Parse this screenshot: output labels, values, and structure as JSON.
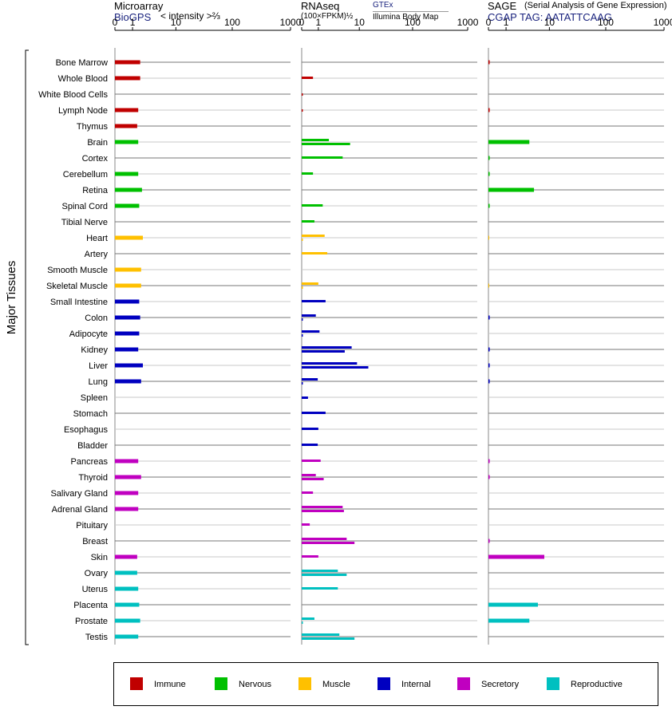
{
  "headers": {
    "microarray": {
      "title": "Microarray",
      "source": "BioGPS",
      "unit": "< intensity >⅔"
    },
    "rnaseq": {
      "title": "RNAseq",
      "unit": "(100×FPKM)½",
      "source_top": "GTEx",
      "source_bottom": "Illumina Body Map"
    },
    "sage": {
      "title": "SAGE",
      "subtitle": "(Serial Analysis of Gene Expression)",
      "tag": "CGAP  TAG: AATATTCAAG"
    }
  },
  "y_group_label": "Major Tissues",
  "colors": {
    "Immune": "#c00000",
    "Nervous": "#00c000",
    "Muscle": "#ffc000",
    "Internal": "#0000c0",
    "Secretory": "#c000c0",
    "Reproductive": "#00c0c0"
  },
  "legend": [
    {
      "label": "Immune",
      "category": "Immune"
    },
    {
      "label": "Nervous",
      "category": "Nervous"
    },
    {
      "label": "Muscle",
      "category": "Muscle"
    },
    {
      "label": "Internal",
      "category": "Internal"
    },
    {
      "label": "Secretory",
      "category": "Secretory"
    },
    {
      "label": "Reproductive",
      "category": "Reproductive"
    }
  ],
  "chart_data": {
    "type": "bar",
    "axis_ticks": [
      "0",
      "1",
      "10",
      "100",
      "1000"
    ],
    "axis_tick_values": [
      0,
      1,
      10,
      100,
      1000
    ],
    "scale": "symlog",
    "grid": true,
    "legend_placement": "bottom",
    "panels": [
      {
        "name": "Microarray",
        "series": [
          "BioGPS"
        ]
      },
      {
        "name": "RNAseq",
        "series": [
          "GTEx",
          "Illumina Body Map"
        ]
      },
      {
        "name": "SAGE",
        "series": [
          "CGAP"
        ]
      }
    ],
    "tissues": [
      {
        "name": "Bone Marrow",
        "category": "Immune",
        "microarray": 1.7,
        "gtex": null,
        "ibm": null,
        "sage": 0.05
      },
      {
        "name": "Whole Blood",
        "category": "Immune",
        "microarray": 1.7,
        "gtex": 0.6,
        "ibm": null,
        "sage": null
      },
      {
        "name": "White Blood Cells",
        "category": "Immune",
        "microarray": null,
        "gtex": null,
        "ibm": 0.05,
        "sage": null
      },
      {
        "name": "Lymph Node",
        "category": "Immune",
        "microarray": 1.5,
        "gtex": null,
        "ibm": 0.05,
        "sage": 0.05
      },
      {
        "name": "Thymus",
        "category": "Immune",
        "microarray": 1.4,
        "gtex": null,
        "ibm": null,
        "sage": null
      },
      {
        "name": "Brain",
        "category": "Nervous",
        "microarray": 1.5,
        "gtex": 2.1,
        "ibm": 6.5,
        "sage": 4.0
      },
      {
        "name": "Cortex",
        "category": "Nervous",
        "microarray": null,
        "gtex": 4.5,
        "ibm": null,
        "sage": 0.05
      },
      {
        "name": "Cerebellum",
        "category": "Nervous",
        "microarray": 1.5,
        "gtex": 0.6,
        "ibm": null,
        "sage": 0.05
      },
      {
        "name": "Retina",
        "category": "Nervous",
        "microarray": 1.9,
        "gtex": null,
        "ibm": null,
        "sage": 5.0
      },
      {
        "name": "Spinal Cord",
        "category": "Nervous",
        "microarray": 1.6,
        "gtex": 1.4,
        "ibm": null,
        "sage": 0.05
      },
      {
        "name": "Tibial Nerve",
        "category": "Nervous",
        "microarray": null,
        "gtex": 0.7,
        "ibm": null,
        "sage": null
      },
      {
        "name": "Heart",
        "category": "Muscle",
        "microarray": 2.0,
        "gtex": 1.6,
        "ibm": 0.05,
        "sage": 0.02
      },
      {
        "name": "Artery",
        "category": "Muscle",
        "microarray": null,
        "gtex": 1.9,
        "ibm": null,
        "sage": null
      },
      {
        "name": "Smooth Muscle",
        "category": "Muscle",
        "microarray": 1.8,
        "gtex": null,
        "ibm": null,
        "sage": null
      },
      {
        "name": "Skeletal Muscle",
        "category": "Muscle",
        "microarray": 1.8,
        "gtex": 1.0,
        "ibm": 0.05,
        "sage": 0.02
      },
      {
        "name": "Small Intestine",
        "category": "Internal",
        "microarray": 1.6,
        "gtex": 1.7,
        "ibm": null,
        "sage": null
      },
      {
        "name": "Colon",
        "category": "Internal",
        "microarray": 1.7,
        "gtex": 0.8,
        "ibm": 0.05,
        "sage": 0.05
      },
      {
        "name": "Adipocyte",
        "category": "Internal",
        "microarray": 1.6,
        "gtex": 1.1,
        "ibm": 0.05,
        "sage": null
      },
      {
        "name": "Kidney",
        "category": "Internal",
        "microarray": 1.5,
        "gtex": 7.0,
        "ibm": 5.0,
        "sage": 0.05
      },
      {
        "name": "Liver",
        "category": "Internal",
        "microarray": 2.0,
        "gtex": 9.0,
        "ibm": 15.0,
        "sage": 0.05
      },
      {
        "name": "Lung",
        "category": "Internal",
        "microarray": 1.8,
        "gtex": 0.95,
        "ibm": 0.05,
        "sage": 0.05
      },
      {
        "name": "Spleen",
        "category": "Internal",
        "microarray": null,
        "gtex": null,
        "ibm": 0.3,
        "sage": null
      },
      {
        "name": "Stomach",
        "category": "Internal",
        "microarray": null,
        "gtex": 1.7,
        "ibm": null,
        "sage": null
      },
      {
        "name": "Esophagus",
        "category": "Internal",
        "microarray": null,
        "gtex": 1.0,
        "ibm": null,
        "sage": null
      },
      {
        "name": "Bladder",
        "category": "Internal",
        "microarray": null,
        "gtex": 0.95,
        "ibm": null,
        "sage": null
      },
      {
        "name": "Pancreas",
        "category": "Secretory",
        "microarray": 1.5,
        "gtex": 1.2,
        "ibm": null,
        "sage": 0.05
      },
      {
        "name": "Thyroid",
        "category": "Secretory",
        "microarray": 1.8,
        "gtex": 0.8,
        "ibm": 1.5,
        "sage": 0.05
      },
      {
        "name": "Salivary Gland",
        "category": "Secretory",
        "microarray": 1.5,
        "gtex": 0.6,
        "ibm": null,
        "sage": null
      },
      {
        "name": "Adrenal Gland",
        "category": "Secretory",
        "microarray": 1.5,
        "gtex": 4.5,
        "ibm": 4.8,
        "sage": null
      },
      {
        "name": "Pituitary",
        "category": "Secretory",
        "microarray": null,
        "gtex": 0.4,
        "ibm": null,
        "sage": null
      },
      {
        "name": "Breast",
        "category": "Secretory",
        "microarray": null,
        "gtex": 5.5,
        "ibm": 8.0,
        "sage": 0.05
      },
      {
        "name": "Skin",
        "category": "Secretory",
        "microarray": 1.4,
        "gtex": 1.0,
        "ibm": null,
        "sage": 8.0
      },
      {
        "name": "Ovary",
        "category": "Reproductive",
        "microarray": 1.4,
        "gtex": 3.5,
        "ibm": 5.5,
        "sage": null
      },
      {
        "name": "Uterus",
        "category": "Reproductive",
        "microarray": 1.5,
        "gtex": 3.5,
        "ibm": null,
        "sage": null
      },
      {
        "name": "Placenta",
        "category": "Reproductive",
        "microarray": 1.6,
        "gtex": null,
        "ibm": null,
        "sage": 6.0
      },
      {
        "name": "Prostate",
        "category": "Reproductive",
        "microarray": 1.7,
        "gtex": 0.7,
        "ibm": 0.05,
        "sage": 4.0
      },
      {
        "name": "Testis",
        "category": "Reproductive",
        "microarray": 1.5,
        "gtex": 3.8,
        "ibm": 8.0,
        "sage": null
      }
    ]
  }
}
